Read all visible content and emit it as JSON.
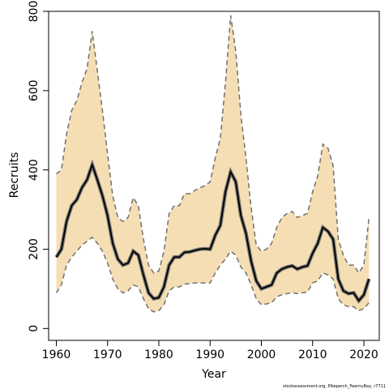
{
  "chart_data": {
    "type": "line",
    "xlabel": "Year",
    "ylabel": "Recruits",
    "xlim": [
      1958.5,
      2023
    ],
    "ylim": [
      -30,
      800
    ],
    "x_ticks": [
      1960,
      1970,
      1980,
      1990,
      2000,
      2010,
      2020
    ],
    "y_ticks": [
      0,
      200,
      400,
      600,
      800
    ],
    "caption": "stockassessment.org, Pikeperch_PaernuBay, r7711",
    "colors": {
      "band": "#f5deb3",
      "estimate": "#000000",
      "bounds": "#707070",
      "axes": "#000000"
    },
    "x": [
      1960,
      1961,
      1962,
      1963,
      1964,
      1965,
      1966,
      1967,
      1968,
      1969,
      1970,
      1971,
      1972,
      1973,
      1974,
      1975,
      1976,
      1977,
      1978,
      1979,
      1980,
      1981,
      1982,
      1983,
      1984,
      1985,
      1986,
      1987,
      1988,
      1989,
      1990,
      1991,
      1992,
      1993,
      1994,
      1995,
      1996,
      1997,
      1998,
      1999,
      2000,
      2001,
      2002,
      2003,
      2004,
      2005,
      2006,
      2007,
      2008,
      2009,
      2010,
      2011,
      2012,
      2013,
      2014,
      2015,
      2016,
      2017,
      2018,
      2019,
      2020,
      2021
    ],
    "series": [
      {
        "role": "estimate",
        "values": [
          180,
          200,
          270,
          310,
          325,
          355,
          375,
          413,
          375,
          335,
          285,
          215,
          175,
          160,
          165,
          195,
          185,
          135,
          90,
          75,
          78,
          105,
          160,
          180,
          180,
          192,
          193,
          197,
          200,
          201,
          200,
          235,
          260,
          345,
          395,
          370,
          285,
          240,
          170,
          120,
          100,
          105,
          110,
          140,
          150,
          155,
          158,
          150,
          155,
          158,
          190,
          215,
          255,
          245,
          225,
          125,
          95,
          88,
          90,
          70,
          85,
          125
        ]
      },
      {
        "role": "lower",
        "values": [
          90,
          110,
          160,
          180,
          195,
          210,
          220,
          230,
          215,
          195,
          165,
          125,
          100,
          90,
          95,
          110,
          105,
          75,
          50,
          42,
          45,
          60,
          95,
          105,
          105,
          112,
          113,
          115,
          115,
          115,
          115,
          140,
          160,
          175,
          195,
          185,
          155,
          140,
          110,
          75,
          60,
          62,
          65,
          80,
          85,
          88,
          90,
          88,
          90,
          92,
          115,
          120,
          140,
          135,
          125,
          75,
          60,
          55,
          55,
          45,
          50,
          65
        ]
      },
      {
        "role": "upper",
        "values": [
          390,
          400,
          490,
          550,
          575,
          620,
          655,
          750,
          650,
          550,
          440,
          335,
          280,
          270,
          280,
          330,
          310,
          225,
          160,
          140,
          145,
          195,
          290,
          310,
          310,
          340,
          340,
          348,
          355,
          360,
          370,
          430,
          480,
          620,
          790,
          700,
          540,
          430,
          305,
          210,
          195,
          200,
          215,
          255,
          280,
          290,
          295,
          280,
          285,
          290,
          345,
          385,
          465,
          455,
          410,
          225,
          185,
          160,
          160,
          140,
          160,
          280
        ]
      }
    ]
  }
}
